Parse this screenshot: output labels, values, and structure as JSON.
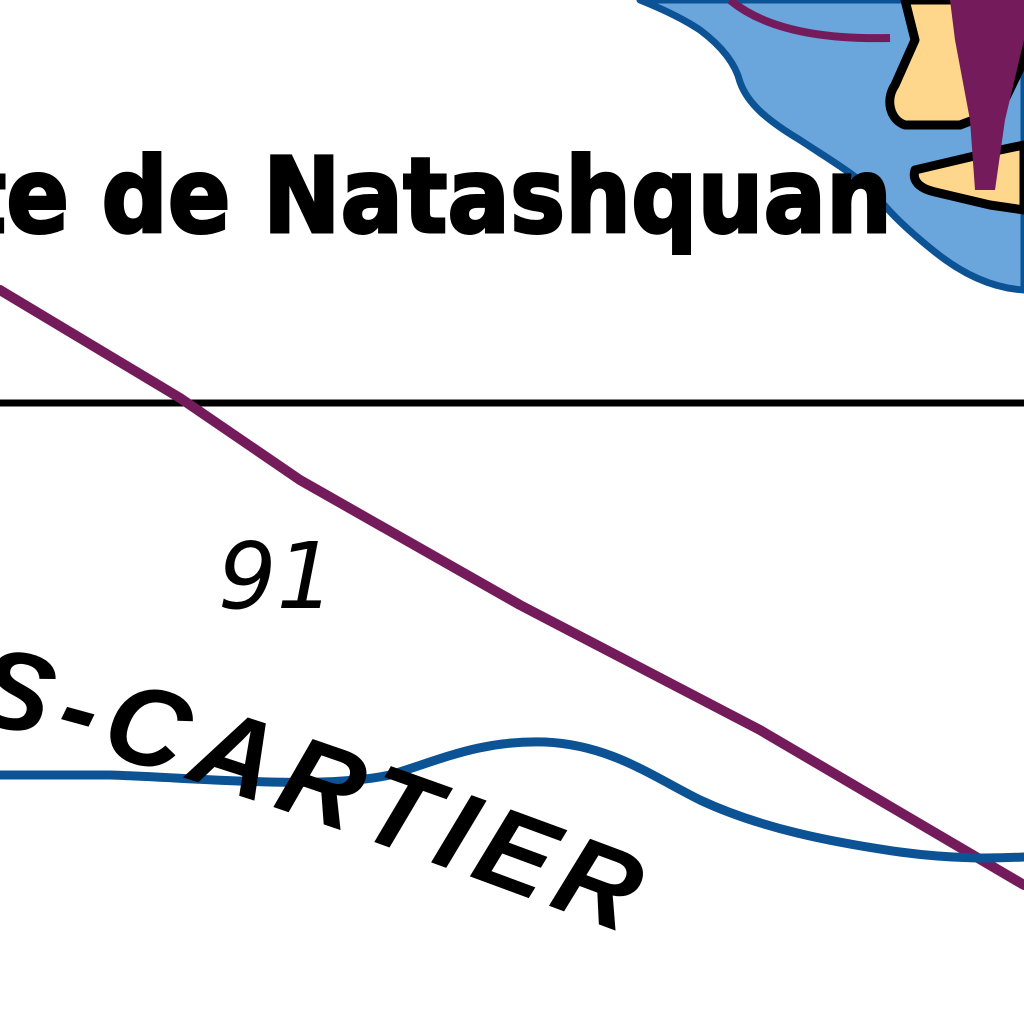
{
  "map": {
    "place_label": "te de Natashquan",
    "route_number": "91",
    "curved_label": "S-CARTIER",
    "colors": {
      "water_fill": "#6aa5dc",
      "water_outline": "#0b5394",
      "boundary_line": "#741b5b",
      "land_yellow": "#ffd78c",
      "grid_line": "#000000",
      "background": "#ffffff"
    },
    "icons": [
      "lighthouse-icon"
    ]
  }
}
